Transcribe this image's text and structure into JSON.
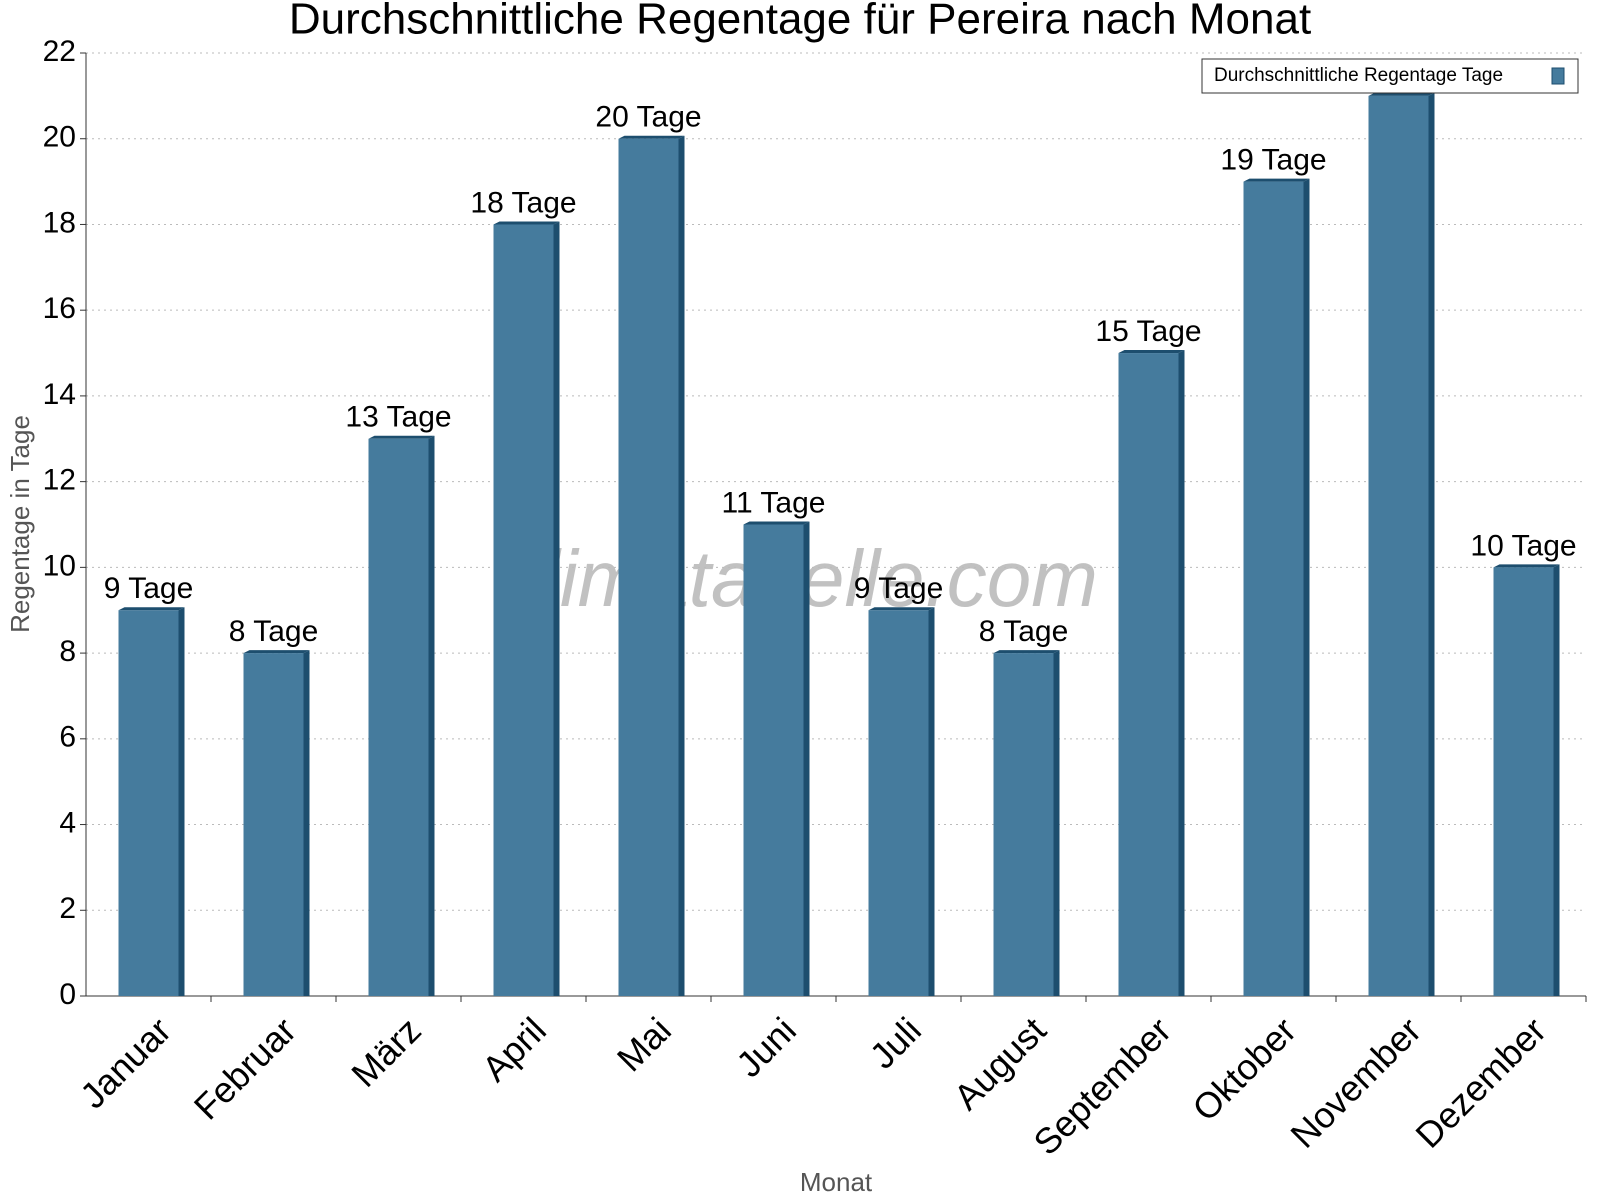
{
  "chart_data": {
    "type": "bar",
    "title": "Durchschnittliche Regentage für Pereira nach Monat",
    "x_label": "Monat",
    "y_label": "Regentage in Tage",
    "watermark": "klimatabelle.com",
    "categories": [
      "Januar",
      "Februar",
      "März",
      "April",
      "Mai",
      "Juni",
      "Juli",
      "August",
      "September",
      "Oktober",
      "November",
      "Dezember"
    ],
    "series": [
      {
        "name": "Durchschnittliche Regentage Tage",
        "color": "#457b9d",
        "values": [
          9,
          8,
          13,
          18,
          20,
          11,
          9,
          8,
          15,
          19,
          21,
          10
        ],
        "value_labels": [
          "9 Tage",
          "8 Tage",
          "13 Tage",
          "18 Tage",
          "20 Tage",
          "11 Tage",
          "9 Tage",
          "8 Tage",
          "15 Tage",
          "19 Tage",
          null,
          "10 Tage"
        ]
      }
    ],
    "ylim": [
      0,
      22
    ],
    "yticks": [
      0,
      2,
      4,
      6,
      8,
      10,
      12,
      14,
      16,
      18,
      20,
      22
    ],
    "grid": true,
    "legend": "top-right"
  }
}
